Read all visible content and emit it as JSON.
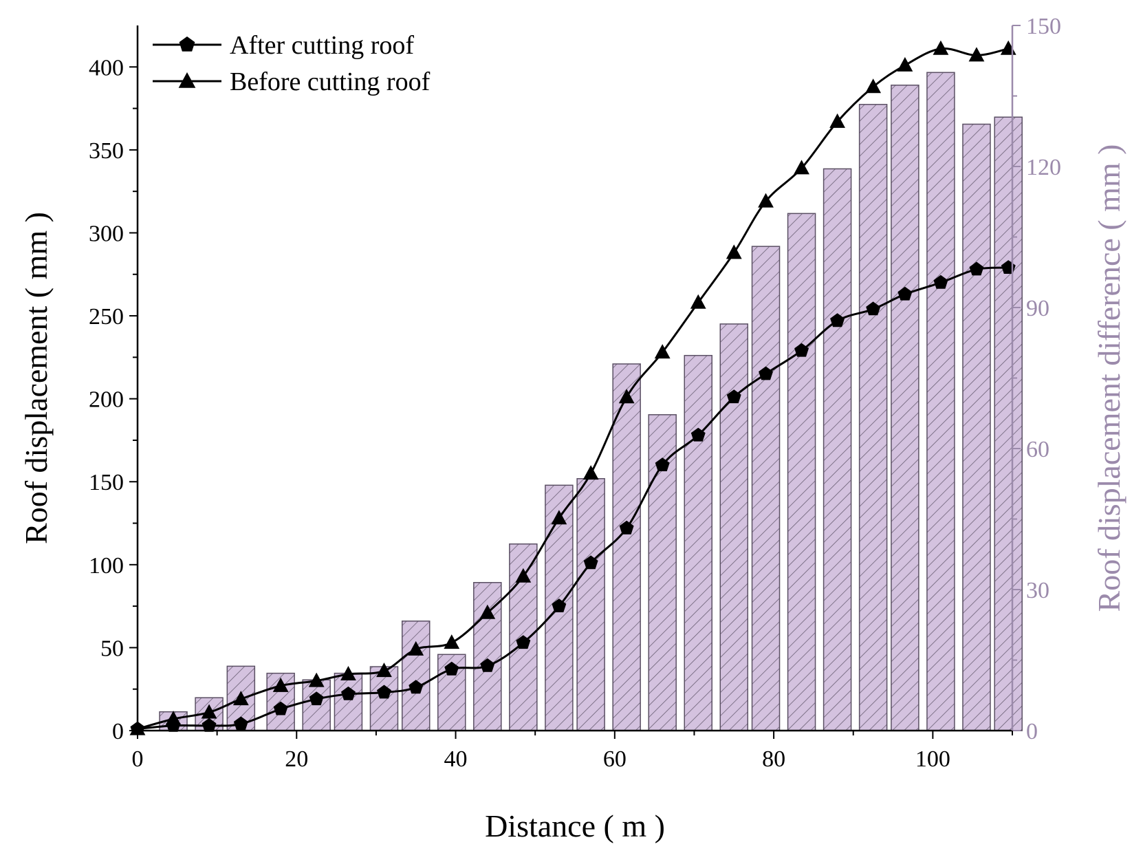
{
  "chart_data": {
    "type": "bar+line",
    "xlabel": "Distance ( m )",
    "ylabel_left": "Roof displacement ( mm )",
    "ylabel_right": "Roof displacement difference ( mm )",
    "xlim": [
      0,
      110
    ],
    "ylim_left": [
      0,
      425
    ],
    "ylim_right": [
      0,
      150
    ],
    "xticks": [
      0,
      20,
      40,
      60,
      80,
      100
    ],
    "yticks_left": [
      0,
      50,
      100,
      150,
      200,
      250,
      300,
      350,
      400
    ],
    "yticks_right": [
      0,
      30,
      60,
      90,
      120,
      150
    ],
    "right_axis_color": "#9b8aab",
    "bar_fill": "#d4c2df",
    "bar_stroke": "#5a4f63",
    "line_color": "#000000",
    "legend": {
      "position": "top-left",
      "entries": [
        "After cutting roof",
        "Before cutting roof"
      ]
    },
    "bars": {
      "name": "Roof displacement difference",
      "axis": "right",
      "x": [
        4.5,
        9,
        13,
        18,
        22.5,
        26.5,
        31,
        35,
        39.5,
        44,
        48.5,
        53,
        57,
        61.5,
        66,
        70.5,
        75,
        79,
        83.5,
        88,
        92.5,
        96.5,
        101,
        105.5,
        109.5
      ],
      "values": [
        4,
        7,
        13.7,
        12.2,
        10.8,
        12.2,
        13.6,
        23.3,
        16.2,
        31.5,
        39.7,
        52.2,
        53.6,
        78,
        67.2,
        79.8,
        86.5,
        103,
        110,
        119.5,
        133.2,
        137.3,
        140,
        129,
        130.5
      ]
    },
    "series": [
      {
        "name": "After cutting roof",
        "marker": "pentagon",
        "axis": "left",
        "x": [
          0,
          4.5,
          9,
          13,
          18,
          22.5,
          26.5,
          31,
          35,
          39.5,
          44,
          48.5,
          53,
          57,
          61.5,
          66,
          70.5,
          75,
          79,
          83.5,
          88,
          92.5,
          96.5,
          101,
          105.5,
          109.5
        ],
        "values": [
          1,
          3,
          3,
          4,
          13,
          19,
          22,
          23,
          26,
          37,
          39,
          53,
          75,
          101,
          122,
          160,
          178,
          201,
          215,
          229,
          247,
          254,
          263,
          270,
          278,
          279
        ]
      },
      {
        "name": "Before cutting roof",
        "marker": "triangle",
        "axis": "left",
        "x": [
          0,
          4.5,
          9,
          13,
          18,
          22.5,
          26.5,
          31,
          35,
          39.5,
          44,
          48.5,
          53,
          57,
          61.5,
          66,
          70.5,
          75,
          79,
          83.5,
          88,
          92.5,
          96.5,
          101,
          105.5,
          109.5
        ],
        "values": [
          1,
          7,
          11,
          19,
          27,
          30,
          34,
          36,
          49,
          53,
          71,
          93,
          128,
          155,
          201,
          228,
          258,
          288,
          319,
          339,
          367,
          388,
          401,
          411,
          407,
          411
        ]
      }
    ]
  }
}
